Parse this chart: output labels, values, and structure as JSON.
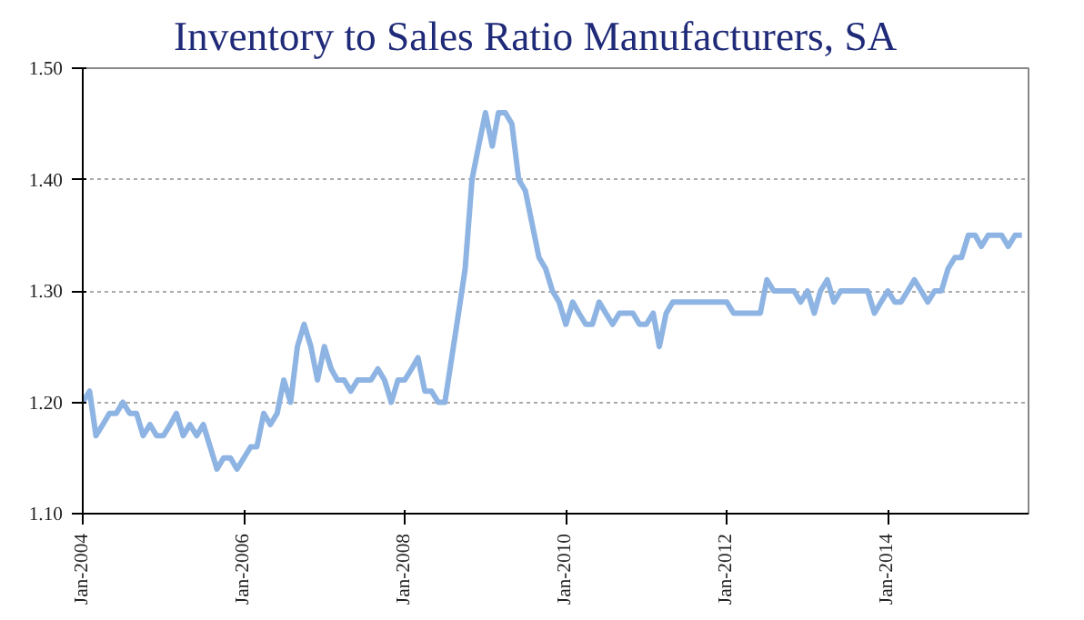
{
  "chart_data": {
    "type": "line",
    "title": "Inventory to Sales Ratio Manufacturers, SA",
    "x": [
      "2004-01",
      "2004-02",
      "2004-03",
      "2004-04",
      "2004-05",
      "2004-06",
      "2004-07",
      "2004-08",
      "2004-09",
      "2004-10",
      "2004-11",
      "2004-12",
      "2005-01",
      "2005-02",
      "2005-03",
      "2005-04",
      "2005-05",
      "2005-06",
      "2005-07",
      "2005-08",
      "2005-09",
      "2005-10",
      "2005-11",
      "2005-12",
      "2006-01",
      "2006-02",
      "2006-03",
      "2006-04",
      "2006-05",
      "2006-06",
      "2006-07",
      "2006-08",
      "2006-09",
      "2006-10",
      "2006-11",
      "2006-12",
      "2007-01",
      "2007-02",
      "2007-03",
      "2007-04",
      "2007-05",
      "2007-06",
      "2007-07",
      "2007-08",
      "2007-09",
      "2007-10",
      "2007-11",
      "2007-12",
      "2008-01",
      "2008-02",
      "2008-03",
      "2008-04",
      "2008-05",
      "2008-06",
      "2008-07",
      "2008-08",
      "2008-09",
      "2008-10",
      "2008-11",
      "2008-12",
      "2009-01",
      "2009-02",
      "2009-03",
      "2009-04",
      "2009-05",
      "2009-06",
      "2009-07",
      "2009-08",
      "2009-09",
      "2009-10",
      "2009-11",
      "2009-12",
      "2010-01",
      "2010-02",
      "2010-03",
      "2010-04",
      "2010-05",
      "2010-06",
      "2010-07",
      "2010-08",
      "2010-09",
      "2010-10",
      "2010-11",
      "2010-12",
      "2011-01",
      "2011-02",
      "2011-03",
      "2011-04",
      "2011-05",
      "2011-06",
      "2011-07",
      "2011-08",
      "2011-09",
      "2011-10",
      "2011-11",
      "2011-12",
      "2012-01",
      "2012-02",
      "2012-03",
      "2012-04",
      "2012-05",
      "2012-06",
      "2012-07",
      "2012-08",
      "2012-09",
      "2012-10",
      "2012-11",
      "2012-12",
      "2013-01",
      "2013-02",
      "2013-03",
      "2013-04",
      "2013-05",
      "2013-06",
      "2013-07",
      "2013-08",
      "2013-09",
      "2013-10",
      "2013-11",
      "2013-12",
      "2014-01",
      "2014-02",
      "2014-03",
      "2014-04",
      "2014-05",
      "2014-06",
      "2014-07",
      "2014-08",
      "2014-09",
      "2014-10",
      "2014-11",
      "2014-12",
      "2015-01",
      "2015-02",
      "2015-03",
      "2015-04",
      "2015-05",
      "2015-06",
      "2015-07",
      "2015-08",
      "2015-09"
    ],
    "series": [
      {
        "color": "#8eb4e3",
        "values": [
          1.2,
          1.21,
          1.17,
          1.18,
          1.19,
          1.19,
          1.2,
          1.19,
          1.19,
          1.17,
          1.18,
          1.17,
          1.17,
          1.18,
          1.19,
          1.17,
          1.18,
          1.17,
          1.18,
          1.16,
          1.14,
          1.15,
          1.15,
          1.14,
          1.15,
          1.16,
          1.16,
          1.19,
          1.18,
          1.19,
          1.22,
          1.2,
          1.25,
          1.27,
          1.25,
          1.22,
          1.25,
          1.23,
          1.22,
          1.22,
          1.21,
          1.22,
          1.22,
          1.22,
          1.23,
          1.22,
          1.2,
          1.22,
          1.22,
          1.23,
          1.24,
          1.21,
          1.21,
          1.2,
          1.2,
          1.24,
          1.28,
          1.32,
          1.4,
          1.43,
          1.46,
          1.43,
          1.46,
          1.46,
          1.45,
          1.4,
          1.39,
          1.36,
          1.33,
          1.32,
          1.3,
          1.29,
          1.27,
          1.29,
          1.28,
          1.27,
          1.27,
          1.29,
          1.28,
          1.27,
          1.28,
          1.28,
          1.28,
          1.27,
          1.27,
          1.28,
          1.25,
          1.28,
          1.29,
          1.29,
          1.29,
          1.29,
          1.29,
          1.29,
          1.29,
          1.29,
          1.29,
          1.28,
          1.28,
          1.28,
          1.28,
          1.28,
          1.31,
          1.3,
          1.3,
          1.3,
          1.3,
          1.29,
          1.3,
          1.28,
          1.3,
          1.31,
          1.29,
          1.3,
          1.3,
          1.3,
          1.3,
          1.3,
          1.28,
          1.29,
          1.3,
          1.29,
          1.29,
          1.3,
          1.31,
          1.3,
          1.29,
          1.3,
          1.3,
          1.32,
          1.33,
          1.33,
          1.35,
          1.35,
          1.34,
          1.35,
          1.35,
          1.35,
          1.34,
          1.35,
          1.35
        ]
      }
    ],
    "xlim": [
      "2004-01",
      "2015-10"
    ],
    "xticks": [
      {
        "value": "2004-01",
        "label": "Jan-2004"
      },
      {
        "value": "2006-01",
        "label": "Jan-2006"
      },
      {
        "value": "2008-01",
        "label": "Jan-2008"
      },
      {
        "value": "2010-01",
        "label": "Jan-2010"
      },
      {
        "value": "2012-01",
        "label": "Jan-2012"
      },
      {
        "value": "2014-01",
        "label": "Jan-2014"
      }
    ],
    "ylim": [
      1.1,
      1.5
    ],
    "yticks": [
      {
        "value": 1.1,
        "label": "1.10"
      },
      {
        "value": 1.2,
        "label": "1.20"
      },
      {
        "value": 1.3,
        "label": "1.30"
      },
      {
        "value": 1.4,
        "label": "1.40"
      },
      {
        "value": 1.5,
        "label": "1.50"
      }
    ],
    "grid": "y",
    "line_style": "solid"
  }
}
